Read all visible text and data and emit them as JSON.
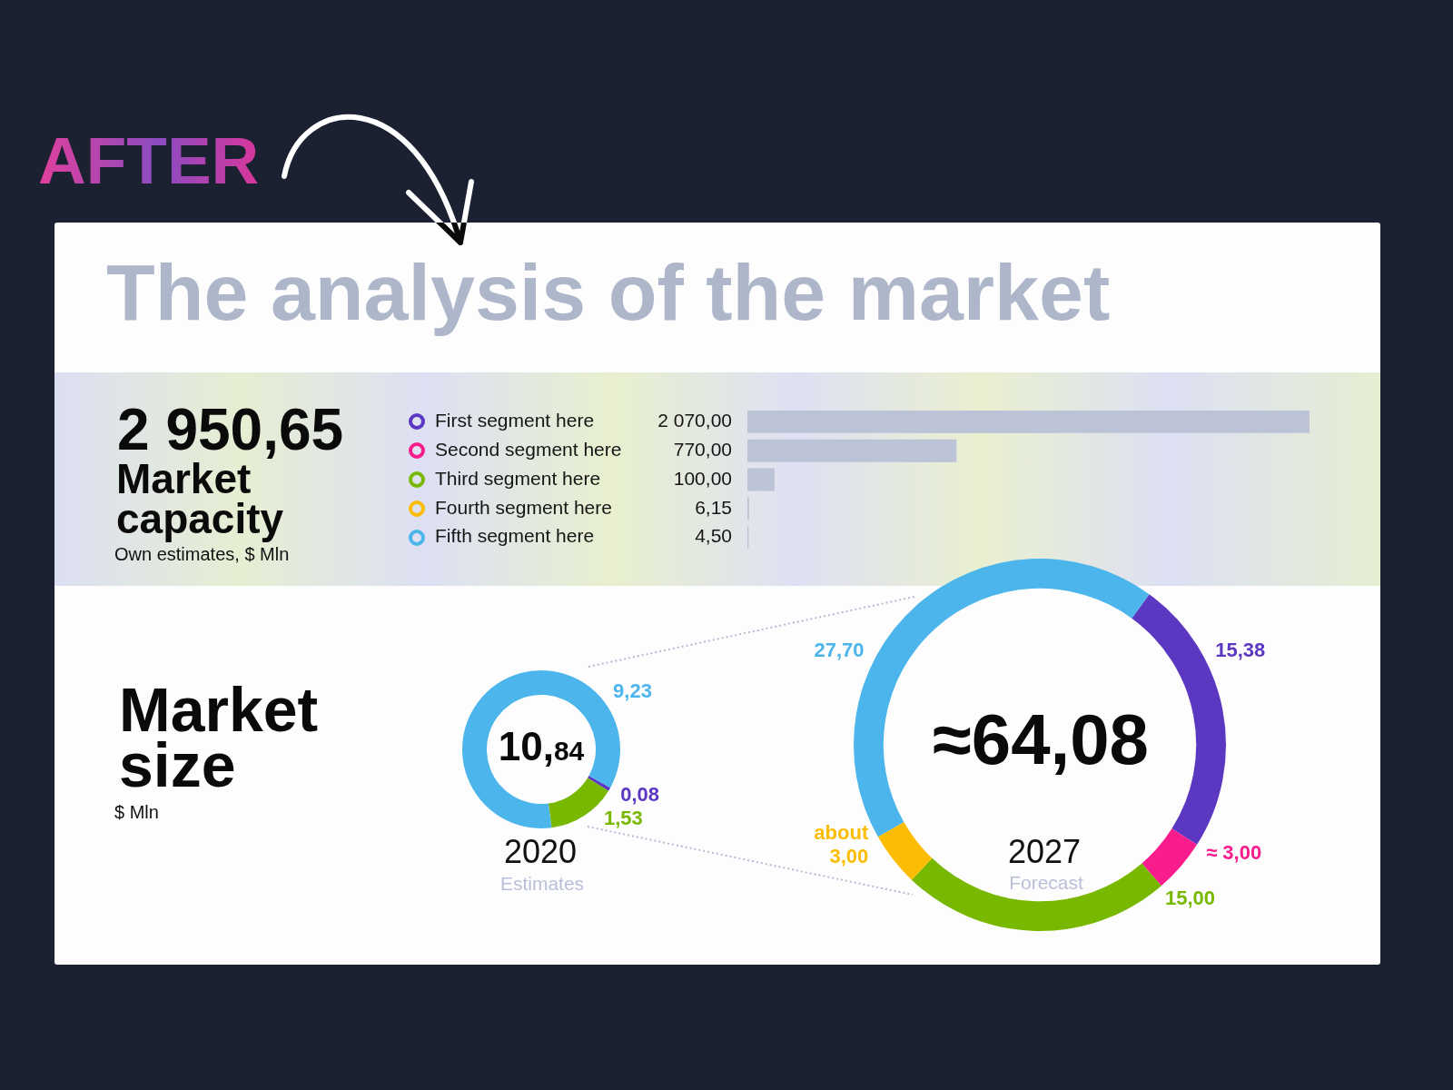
{
  "chart_data": [
    {
      "type": "bar",
      "orientation": "horizontal",
      "title": "The analysis of the market",
      "annotations": [
        "AFTER",
        "2 950,65",
        "Market capacity",
        "Own estimates, $ Mln"
      ],
      "categories": [
        "First segment here",
        "Second segment here",
        "Third segment here",
        "Fourth segment here",
        "Fifth segment here"
      ],
      "values": [
        2070,
        770,
        100,
        6.15,
        4.5
      ],
      "color": "#bcc3d6",
      "value_labels": [
        "2 070,00",
        "770,00",
        "100,00",
        "6,15",
        "4,50"
      ]
    },
    {
      "type": "donut",
      "title": "2020",
      "subtitle": "Estimates",
      "annotations": [
        "10,84",
        "Market size",
        "$ Mln"
      ],
      "categories": [
        null,
        null,
        null
      ],
      "values": [
        0.08,
        1.53,
        9.23
      ],
      "colors": [
        "#5b37c2",
        "#78b800",
        "#4cb6ec"
      ],
      "value_labels": [
        "0,08",
        "1,53",
        "9,23"
      ]
    },
    {
      "type": "donut",
      "title": "2027",
      "subtitle": "Forecast",
      "annotations": [
        "≈64,08"
      ],
      "categories": [
        null,
        null,
        null,
        null,
        null
      ],
      "values": [
        15.38,
        3,
        15,
        3,
        27.7
      ],
      "colors": [
        "#5b37c2",
        "#f81c8c",
        "#78b800",
        "#fbbc04",
        "#4cb6ec"
      ],
      "value_labels": [
        "15,38",
        "≈ 3,00",
        "15,00",
        "about 3,00",
        "27,70"
      ]
    }
  ]
}
